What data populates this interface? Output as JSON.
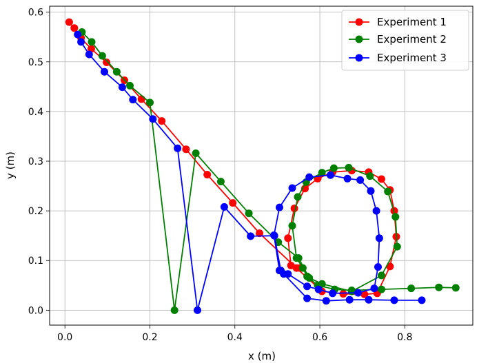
{
  "chart_data": {
    "type": "line",
    "title": "",
    "xlabel": "x (m)",
    "ylabel": "y (m)",
    "xlim": [
      -0.036,
      0.96
    ],
    "ylim": [
      -0.03,
      0.612
    ],
    "xticks": [
      0.0,
      0.2,
      0.4,
      0.6,
      0.8
    ],
    "xtick_labels": [
      "0.0",
      "0.2",
      "0.4",
      "0.6",
      "0.8"
    ],
    "yticks": [
      0.0,
      0.1,
      0.2,
      0.3,
      0.4,
      0.5,
      0.6
    ],
    "ytick_labels": [
      "0.0",
      "0.1",
      "0.2",
      "0.3",
      "0.4",
      "0.5",
      "0.6"
    ],
    "grid": true,
    "legend_position": "top-right",
    "series": [
      {
        "name": "Experiment 1",
        "color": "#ff0000",
        "x": [
          0.01,
          0.022,
          0.038,
          0.062,
          0.098,
          0.14,
          0.18,
          0.228,
          0.285,
          0.335,
          0.395,
          0.458,
          0.545,
          0.605,
          0.655,
          0.705,
          0.735,
          0.765,
          0.78,
          0.775,
          0.765,
          0.745,
          0.715,
          0.675,
          0.63,
          0.595,
          0.565,
          0.54,
          0.525,
          0.532,
          0.553
        ],
        "y": [
          0.58,
          0.568,
          0.548,
          0.526,
          0.499,
          0.463,
          0.425,
          0.381,
          0.324,
          0.273,
          0.216,
          0.155,
          0.085,
          0.038,
          0.033,
          0.032,
          0.034,
          0.088,
          0.148,
          0.2,
          0.242,
          0.264,
          0.278,
          0.281,
          0.278,
          0.265,
          0.245,
          0.205,
          0.145,
          0.09,
          0.085
        ]
      },
      {
        "name": "Experiment 2",
        "color": "#008000",
        "x": [
          0.04,
          0.063,
          0.088,
          0.122,
          0.153,
          0.2,
          0.258,
          0.308,
          0.367,
          0.433,
          0.502,
          0.55,
          0.575,
          0.605,
          0.675,
          0.745,
          0.782,
          0.778,
          0.76,
          0.718,
          0.668,
          0.633,
          0.605,
          0.568,
          0.548,
          0.535,
          0.545,
          0.56,
          0.57,
          0.595,
          0.635,
          0.675,
          0.745,
          0.815,
          0.88,
          0.92
        ],
        "y": [
          0.56,
          0.54,
          0.512,
          0.48,
          0.452,
          0.418,
          0.0,
          0.316,
          0.259,
          0.195,
          0.137,
          0.105,
          0.065,
          0.053,
          0.038,
          0.07,
          0.128,
          0.188,
          0.239,
          0.27,
          0.287,
          0.286,
          0.277,
          0.258,
          0.228,
          0.17,
          0.105,
          0.085,
          0.068,
          0.05,
          0.042,
          0.04,
          0.042,
          0.044,
          0.046,
          0.045
        ]
      },
      {
        "name": "Experiment 3",
        "color": "#0000ff",
        "x": [
          0.03,
          0.038,
          0.057,
          0.093,
          0.135,
          0.16,
          0.207,
          0.265,
          0.312,
          0.375,
          0.437,
          0.493,
          0.508,
          0.525,
          0.57,
          0.597,
          0.63,
          0.69,
          0.728,
          0.737,
          0.74,
          0.733,
          0.72,
          0.695,
          0.665,
          0.625,
          0.575,
          0.535,
          0.505,
          0.492,
          0.505,
          0.515,
          0.57,
          0.615,
          0.67,
          0.715,
          0.775,
          0.84
        ],
        "y": [
          0.555,
          0.54,
          0.515,
          0.48,
          0.449,
          0.424,
          0.385,
          0.326,
          0.0,
          0.208,
          0.149,
          0.15,
          0.08,
          0.073,
          0.048,
          0.042,
          0.034,
          0.035,
          0.044,
          0.087,
          0.145,
          0.2,
          0.24,
          0.262,
          0.265,
          0.272,
          0.268,
          0.246,
          0.207,
          0.151,
          0.08,
          0.073,
          0.024,
          0.019,
          0.021,
          0.021,
          0.02,
          0.02
        ]
      }
    ]
  }
}
